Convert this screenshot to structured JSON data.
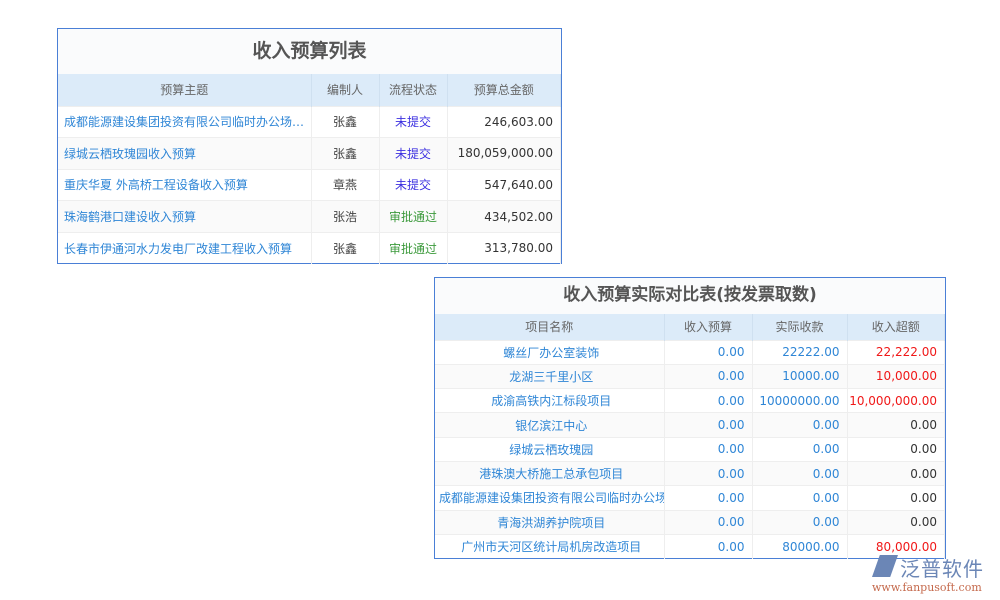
{
  "budget_list": {
    "title": "收入预算列表",
    "headers": [
      "预算主题",
      "编制人",
      "流程状态",
      "预算总金额"
    ],
    "rows": [
      {
        "subject": "成都能源建设集团投资有限公司临时办公场所…",
        "author": "张鑫",
        "status": "未提交",
        "amount": "246,603.00"
      },
      {
        "subject": "绿城云栖玫瑰园收入预算",
        "author": "张鑫",
        "status": "未提交",
        "amount": "180,059,000.00"
      },
      {
        "subject": "重庆华夏 外高桥工程设备收入预算",
        "author": "章燕",
        "status": "未提交",
        "amount": "547,640.00"
      },
      {
        "subject": "珠海鹤港口建设收入预算",
        "author": "张浩",
        "status": "审批通过",
        "amount": "434,502.00"
      },
      {
        "subject": "长春市伊通河水力发电厂改建工程收入预算",
        "author": "张鑫",
        "status": "审批通过",
        "amount": "313,780.00"
      }
    ]
  },
  "comparison": {
    "title": "收入预算实际对比表(按发票取数)",
    "headers": [
      "项目名称",
      "收入预算",
      "实际收款",
      "收入超额"
    ],
    "rows": [
      {
        "name": "螺丝厂办公室装饰",
        "budget": "0.00",
        "actual": "22222.00",
        "excess": "22,222.00",
        "highlight": true
      },
      {
        "name": "龙湖三千里小区",
        "budget": "0.00",
        "actual": "10000.00",
        "excess": "10,000.00",
        "highlight": true
      },
      {
        "name": "成渝高铁内江标段项目",
        "budget": "0.00",
        "actual": "10000000.00",
        "excess": "10,000,000.00",
        "highlight": true
      },
      {
        "name": "银亿滨江中心",
        "budget": "0.00",
        "actual": "0.00",
        "excess": "0.00",
        "highlight": false
      },
      {
        "name": "绿城云栖玫瑰园",
        "budget": "0.00",
        "actual": "0.00",
        "excess": "0.00",
        "highlight": false
      },
      {
        "name": "港珠澳大桥施工总承包项目",
        "budget": "0.00",
        "actual": "0.00",
        "excess": "0.00",
        "highlight": false
      },
      {
        "name": "成都能源建设集团投资有限公司临时办公场所装",
        "budget": "0.00",
        "actual": "0.00",
        "excess": "0.00",
        "highlight": false
      },
      {
        "name": "青海洪湖养护院项目",
        "budget": "0.00",
        "actual": "0.00",
        "excess": "0.00",
        "highlight": false
      },
      {
        "name": "广州市天河区统计局机房改造项目",
        "budget": "0.00",
        "actual": "80000.00",
        "excess": "80,000.00",
        "highlight": true
      }
    ]
  },
  "logo": {
    "name": "泛普软件",
    "url": "www.fanpusoft.com"
  },
  "colors": {
    "link": "#2f86d6",
    "pending": "#3b2fe0",
    "approved": "#3c9a3c",
    "excess": "#f01818",
    "header_bg": "#dcebf9",
    "border": "#4a7fd6"
  }
}
